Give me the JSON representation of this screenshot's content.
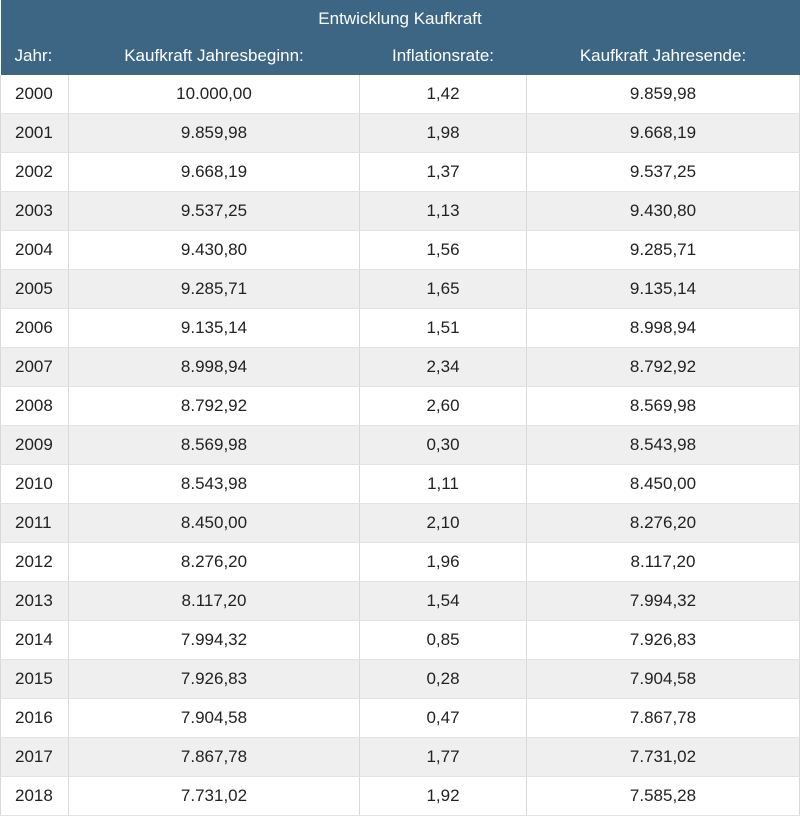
{
  "chart_data": {
    "type": "table",
    "title": "Entwicklung Kaufkraft",
    "columns": [
      "Jahr:",
      "Kaufkraft Jahresbeginn:",
      "Inflationsrate:",
      "Kaufkraft Jahresende:"
    ],
    "rows": [
      [
        "2000",
        "10.000,00",
        "1,42",
        "9.859,98"
      ],
      [
        "2001",
        "9.859,98",
        "1,98",
        "9.668,19"
      ],
      [
        "2002",
        "9.668,19",
        "1,37",
        "9.537,25"
      ],
      [
        "2003",
        "9.537,25",
        "1,13",
        "9.430,80"
      ],
      [
        "2004",
        "9.430,80",
        "1,56",
        "9.285,71"
      ],
      [
        "2005",
        "9.285,71",
        "1,65",
        "9.135,14"
      ],
      [
        "2006",
        "9.135,14",
        "1,51",
        "8.998,94"
      ],
      [
        "2007",
        "8.998,94",
        "2,34",
        "8.792,92"
      ],
      [
        "2008",
        "8.792,92",
        "2,60",
        "8.569,98"
      ],
      [
        "2009",
        "8.569,98",
        "0,30",
        "8.543,98"
      ],
      [
        "2010",
        "8.543,98",
        "1,11",
        "8.450,00"
      ],
      [
        "2011",
        "8.450,00",
        "2,10",
        "8.276,20"
      ],
      [
        "2012",
        "8.276,20",
        "1,96",
        "8.117,20"
      ],
      [
        "2013",
        "8.117,20",
        "1,54",
        "7.994,32"
      ],
      [
        "2014",
        "7.994,32",
        "0,85",
        "7.926,83"
      ],
      [
        "2015",
        "7.926,83",
        "0,28",
        "7.904,58"
      ],
      [
        "2016",
        "7.904,58",
        "0,47",
        "7.867,78"
      ],
      [
        "2017",
        "7.867,78",
        "1,77",
        "7.731,02"
      ],
      [
        "2018",
        "7.731,02",
        "1,92",
        "7.585,28"
      ]
    ]
  },
  "colors": {
    "header_bg": "#3c6683",
    "header_text": "#ffffff",
    "row_alt_bg": "#efefef"
  }
}
